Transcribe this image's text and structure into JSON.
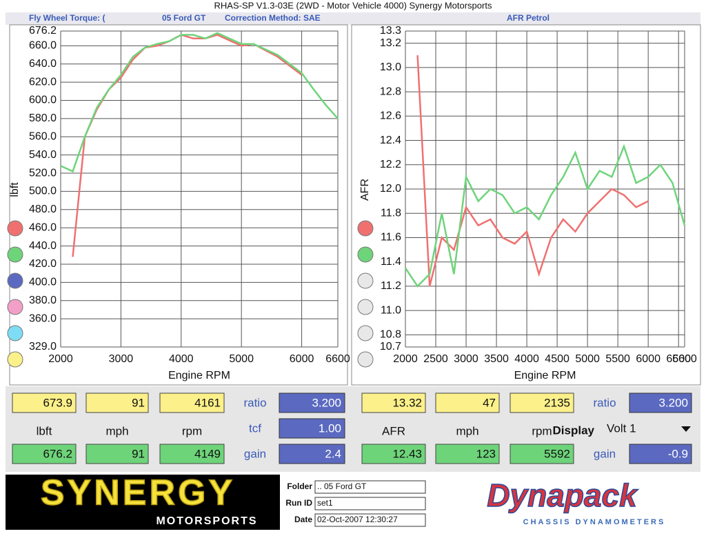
{
  "window": {
    "title": "RHAS-SP V1.3-03E  (2WD - Motor Vehicle 4000)   Synergy Motorsports",
    "left_caption": [
      "Fly Wheel Torque: (",
      "05 Ford GT",
      "Correction Method: SAE"
    ],
    "right_caption": "AFR Petrol"
  },
  "chart_data": [
    {
      "type": "line",
      "ylabel": "lbft",
      "xlabel": "Engine RPM",
      "x": [
        2000,
        2200,
        2400,
        2600,
        2800,
        3000,
        3200,
        3400,
        3600,
        3800,
        4000,
        4200,
        4400,
        4600,
        4800,
        5000,
        5200,
        5400,
        5600,
        5800,
        6000,
        6200,
        6400,
        6600
      ],
      "series": [
        {
          "color": "#f07070",
          "values": [
            null,
            428,
            560,
            590,
            612,
            625,
            645,
            658,
            660,
            665,
            672,
            668,
            668,
            672,
            666,
            660,
            662,
            655,
            648,
            638,
            628,
            null,
            null,
            null
          ]
        },
        {
          "color": "#6ed47a",
          "values": [
            528,
            522,
            560,
            592,
            612,
            628,
            648,
            658,
            662,
            665,
            672,
            672,
            668,
            674,
            668,
            662,
            662,
            656,
            650,
            640,
            630,
            612,
            595,
            580
          ]
        }
      ],
      "xlim": [
        2000,
        6600
      ],
      "xticks": [
        2000,
        3000,
        4000,
        5000,
        6000,
        6600
      ],
      "ylim": [
        329,
        676.2
      ],
      "yticks": [
        {
          "value": 329,
          "label": "329.0"
        },
        {
          "value": 360,
          "label": "360.0"
        },
        {
          "value": 380,
          "label": "380.0"
        },
        {
          "value": 400,
          "label": "400.0"
        },
        {
          "value": 420,
          "label": "420.0"
        },
        {
          "value": 440,
          "label": "440.0"
        },
        {
          "value": 460,
          "label": "460.0"
        },
        {
          "value": 480,
          "label": "480.0"
        },
        {
          "value": 500,
          "label": "500.0"
        },
        {
          "value": 520,
          "label": "520.0"
        },
        {
          "value": 540,
          "label": "540.0"
        },
        {
          "value": 560,
          "label": "560.0"
        },
        {
          "value": 580,
          "label": "580.0"
        },
        {
          "value": 600,
          "label": "600.0"
        },
        {
          "value": 620,
          "label": "620.0"
        },
        {
          "value": 640,
          "label": "640.0"
        },
        {
          "value": 660,
          "label": "660.0"
        },
        676.2
      ],
      "grid": true
    },
    {
      "type": "line",
      "ylabel": "AFR",
      "xlabel": "Engine RPM",
      "x": [
        2000,
        2200,
        2400,
        2600,
        2800,
        3000,
        3200,
        3400,
        3600,
        3800,
        4000,
        4200,
        4400,
        4600,
        4800,
        5000,
        5200,
        5400,
        5600,
        5800,
        6000,
        6200,
        6400,
        6600
      ],
      "series": [
        {
          "color": "#f07070",
          "values": [
            null,
            13.1,
            11.2,
            11.6,
            11.5,
            11.85,
            11.7,
            11.75,
            11.6,
            11.55,
            11.65,
            11.3,
            11.6,
            11.75,
            11.65,
            11.8,
            11.9,
            12.0,
            11.95,
            11.85,
            11.9,
            null,
            null,
            null
          ]
        },
        {
          "color": "#6ed47a",
          "values": [
            11.35,
            11.2,
            11.3,
            11.8,
            11.3,
            12.1,
            11.9,
            12.0,
            11.95,
            11.8,
            11.85,
            11.75,
            11.95,
            12.1,
            12.3,
            12.0,
            12.15,
            12.1,
            12.35,
            12.05,
            12.1,
            12.2,
            12.05,
            11.7
          ]
        }
      ],
      "xlim": [
        2000,
        6600
      ],
      "xticks": [
        2000,
        2500,
        3000,
        3500,
        4000,
        4500,
        5000,
        5500,
        6000,
        6500,
        6600
      ],
      "ylim": [
        10.7,
        13.3
      ],
      "yticks": [
        10.7,
        10.8,
        {
          "value": 11,
          "label": "11.0"
        },
        11.2,
        11.4,
        11.6,
        11.8,
        {
          "value": 12,
          "label": "12.0"
        },
        12.2,
        12.4,
        12.6,
        12.8,
        {
          "value": 13,
          "label": "13.0"
        },
        13.2,
        13.3
      ],
      "grid": true
    }
  ],
  "readouts": [
    {
      "top": [
        "673.9",
        "91",
        "4161"
      ],
      "units": [
        "lbft",
        "mph",
        "rpm"
      ],
      "bottom": [
        "676.2",
        "91",
        "4149"
      ],
      "ratio": {
        "label": "ratio",
        "value": "3.200"
      },
      "middle": {
        "label": "tcf",
        "value": "1.00"
      },
      "gain": {
        "label": "gain",
        "value": "2.4"
      }
    },
    {
      "top": [
        "13.32",
        "47",
        "2135"
      ],
      "units": [
        "AFR",
        "mph",
        "rpm"
      ],
      "bottom": [
        "12.43",
        "123",
        "5592"
      ],
      "ratio": {
        "label": "ratio",
        "value": "3.200"
      },
      "display": {
        "label": "Display",
        "value": "Volt 1"
      },
      "gain": {
        "label": "gain",
        "value": "-0.9"
      }
    }
  ],
  "footer": {
    "logo": "SYNERGY",
    "logo_sub": "MOTORSPORTS",
    "fields": [
      {
        "label": "Folder",
        "value": ".. 05 Ford GT"
      },
      {
        "label": "Run ID",
        "value": "set1"
      },
      {
        "label": "Date",
        "value": "02-Oct-2007  12:30:27"
      }
    ],
    "brand": "Dynapack",
    "brand_sub": "CHASSIS   DYNAMOMETERS"
  }
}
